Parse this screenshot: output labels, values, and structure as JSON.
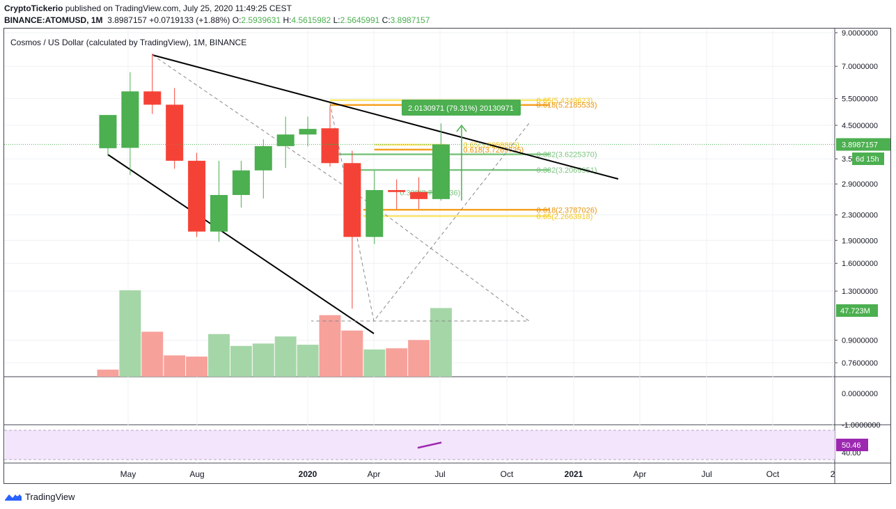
{
  "header": {
    "publisher": "CryptoTickerio",
    "published_text": "published on TradingView.com, July 25, 2020 11:49:25 CEST",
    "symbol": "BINANCE:ATOMUSD, 1M",
    "last": "3.8987157",
    "change": "+0.0719133 (+1.88%)",
    "open_label": "O:",
    "open": "2.5939631",
    "high_label": "H:",
    "high": "4.5615982",
    "low_label": "L:",
    "low": "2.5645991",
    "close_label": "C:",
    "close": "3.8987157"
  },
  "legend_title": "Cosmos / US Dollar (calculated by TradingView), 1M, BINANCE",
  "footer": {
    "brand": "TradingView",
    "logo_icon": "tradingview-logo-icon"
  },
  "colors": {
    "up": "#4caf50",
    "down": "#f44336",
    "vol_up": "#a5d6a7",
    "vol_down": "#f7a19b",
    "fib_orange": "#f6a020",
    "fib_yellow": "#fbe66b",
    "fib_green": "#7bc47f",
    "rsi_band": "#f3e5fc",
    "rsi_line": "#9c27b0"
  },
  "chart_data": {
    "type": "candlestick",
    "symbol": "ATOMUSD",
    "interval": "1M",
    "y_scale": "log",
    "price_axis_ticks": [
      "9.0000000",
      "7.0000000",
      "5.5000000",
      "4.5000000",
      "3.5",
      "2.9000000",
      "2.3000000",
      "1.9000000",
      "1.6000000",
      "1.3000000",
      "0.9000000",
      "0.7600000"
    ],
    "x_axis_ticks": [
      "May",
      "Aug",
      "2020",
      "Apr",
      "Jul",
      "Oct",
      "2021",
      "Apr",
      "Jul",
      "Oct",
      "2"
    ],
    "candles": [
      {
        "o": 3.79,
        "h": 4.85,
        "l": 3.57,
        "c": 4.86
      },
      {
        "o": 3.8,
        "h": 6.7,
        "l": 3.1,
        "c": 5.8
      },
      {
        "o": 5.8,
        "h": 7.7,
        "l": 4.9,
        "c": 5.25
      },
      {
        "o": 5.25,
        "h": 5.95,
        "l": 3.25,
        "c": 3.45
      },
      {
        "o": 3.45,
        "h": 3.66,
        "l": 1.95,
        "c": 2.03
      },
      {
        "o": 2.03,
        "h": 3.45,
        "l": 1.88,
        "c": 2.67
      },
      {
        "o": 2.67,
        "h": 3.45,
        "l": 2.43,
        "c": 3.21
      },
      {
        "o": 3.21,
        "h": 4.05,
        "l": 2.6,
        "c": 3.85
      },
      {
        "o": 3.85,
        "h": 4.8,
        "l": 3.27,
        "c": 4.2
      },
      {
        "o": 4.2,
        "h": 4.8,
        "l": 3.84,
        "c": 4.38
      },
      {
        "o": 4.4,
        "h": 5.2,
        "l": 3.3,
        "c": 3.39
      },
      {
        "o": 3.39,
        "h": 3.72,
        "l": 1.14,
        "c": 1.95
      },
      {
        "o": 1.95,
        "h": 3.2,
        "l": 1.85,
        "c": 2.77
      },
      {
        "o": 2.77,
        "h": 3.0,
        "l": 2.4,
        "c": 2.73
      },
      {
        "o": 2.73,
        "h": 3.05,
        "l": 2.4,
        "c": 2.59
      },
      {
        "o": 2.59,
        "h": 4.56,
        "l": 2.56,
        "c": 3.8987157
      }
    ],
    "volume": {
      "values": [
        0.06,
        0.73,
        0.38,
        0.18,
        0.17,
        0.36,
        0.26,
        0.28,
        0.34,
        0.27,
        0.52,
        0.39,
        0.23,
        0.24,
        0.31,
        0.58
      ],
      "up": [
        false,
        true,
        false,
        false,
        false,
        true,
        true,
        true,
        true,
        true,
        false,
        false,
        true,
        false,
        false,
        true
      ],
      "last_label": "47.723M"
    },
    "price_labels": {
      "last": "3.8987157",
      "countdown": "6d 15h"
    },
    "measure_label": "2.0130971 (79.31%) 20130971",
    "fib_levels": [
      {
        "text": "0.65(5.4349623)",
        "price": 5.43,
        "color": "fib_yellow",
        "from": 10,
        "to": 19.9
      },
      {
        "text": "0.618(5.2185533)",
        "price": 5.24,
        "color": "fib_orange",
        "from": 10,
        "to": 19.9
      },
      {
        "text": "0.65(3.8658865)",
        "price": 3.89,
        "color": "fib_yellow",
        "from": 12,
        "to": 15.2
      },
      {
        "text": "0.618(3.7269735)",
        "price": 3.75,
        "color": "fib_orange",
        "from": 12,
        "to": 15.2
      },
      {
        "text": "0.382(3.6225370)",
        "price": 3.62,
        "color": "fib_green",
        "from": 10,
        "to": 19.9
      },
      {
        "text": "0.382(3.2069951)",
        "price": 3.22,
        "color": "fib_green",
        "from": 10.7,
        "to": 19.9
      },
      {
        "text": "0.382(2.7026136)",
        "price": 2.72,
        "color": "fib_green",
        "from": 13.8,
        "to": 15.2
      },
      {
        "text": "0.618(2.3787026)",
        "price": 2.39,
        "color": "fib_orange",
        "from": 11.5,
        "to": 19.9
      },
      {
        "text": "0.65(2.2663918)",
        "price": 2.28,
        "color": "fib_yellow",
        "from": 11.5,
        "to": 19.9
      }
    ],
    "indicator1_ticks": [
      "0.0000000",
      "-1.0000000"
    ],
    "rsi": {
      "value_label": "50.46",
      "values": [
        48.0,
        50.46
      ],
      "axis_ticks": [
        "40.00"
      ]
    }
  }
}
